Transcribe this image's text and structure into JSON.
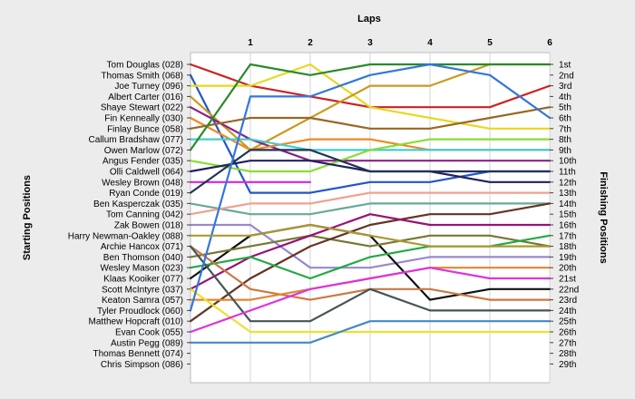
{
  "chart_data": {
    "type": "line",
    "title": "Laps",
    "xlabel": "Laps",
    "ylabel_left": "Starting Positions",
    "ylabel_right": "Finishing Positions",
    "x": [
      0,
      1,
      2,
      3,
      4,
      5,
      6
    ],
    "x_tick_labels": [
      "1",
      "2",
      "3",
      "4",
      "5",
      "6"
    ],
    "ylim": [
      1,
      29
    ],
    "y_inverted": true,
    "grid": true,
    "starting_labels": [
      "Tom Douglas (028)",
      "Thomas Smith (068)",
      "Joe Turney (096)",
      "Albert Carter (016)",
      "Shaye Stewart (022)",
      "Fin Kenneally (030)",
      "Finlay Bunce (058)",
      "Callum Bradshaw (077)",
      "Owen Marlow (072)",
      "Angus Fender (035)",
      "Olli Caldwell (064)",
      "Wesley Brown (048)",
      "Ryan Conde (019)",
      "Ben Kasperczak (035)",
      "Tom Canning (042)",
      "Zak Bowen (018)",
      "Harry Newman-Oakley (088)",
      "Archie Hancox (071)",
      "Ben Thomson (040)",
      "Wesley Mason (023)",
      "Klaas Kooiker (077)",
      "Scott McIntyre (037)",
      "Keaton Samra (057)",
      "Tyler Proudlock (060)",
      "Matthew Hopcraft (010)",
      "Evan Cook (055)",
      "Austin Pegg (089)",
      "Thomas Bennett (074)",
      "Chris Simpson (086)"
    ],
    "finishing_labels": [
      "1st",
      "2nd",
      "3rd",
      "4th",
      "5th",
      "6th",
      "7th",
      "8th",
      "9th",
      "10th",
      "11th",
      "12th",
      "13th",
      "14th",
      "15th",
      "16th",
      "17th",
      "18th",
      "19th",
      "20th",
      "21st",
      "22nd",
      "23rd",
      "24th",
      "25th",
      "26th",
      "27th",
      "28th",
      "29th"
    ],
    "series": [
      {
        "color": "#cc2222",
        "values": [
          1,
          3,
          4,
          5,
          5,
          5,
          3
        ]
      },
      {
        "color": "#2255cc",
        "values": [
          2,
          13,
          13,
          12,
          12,
          11,
          11
        ]
      },
      {
        "color": "#e8d820",
        "values": [
          3,
          3,
          1,
          5,
          6,
          7,
          7
        ]
      },
      {
        "color": "#cc9a22",
        "values": [
          4,
          9,
          6,
          3,
          3,
          1,
          1
        ]
      },
      {
        "color": "#882288",
        "values": [
          5,
          8,
          10,
          10,
          10,
          10,
          10
        ]
      },
      {
        "color": "#ee8822",
        "values": [
          6,
          9,
          8,
          8,
          9,
          9,
          9
        ]
      },
      {
        "color": "#996622",
        "values": [
          7,
          6,
          6,
          7,
          7,
          6,
          5
        ]
      },
      {
        "color": "#44cccc",
        "values": [
          8,
          8,
          9,
          9,
          9,
          9,
          9
        ]
      },
      {
        "color": "#2a8a2a",
        "values": [
          9,
          1,
          2,
          1,
          1,
          1,
          1
        ]
      },
      {
        "color": "#88dd33",
        "values": [
          10,
          11,
          11,
          9,
          8,
          8,
          8
        ]
      },
      {
        "color": "#22225a",
        "values": [
          11,
          10,
          10,
          11,
          11,
          12,
          12
        ]
      },
      {
        "color": "#dd22dd",
        "values": [
          12,
          12,
          12,
          null,
          null,
          null,
          null
        ]
      },
      {
        "color": "#22335a",
        "values": [
          13,
          9,
          9,
          11,
          11,
          11,
          11
        ]
      },
      {
        "color": "#66aa99",
        "values": [
          14,
          15,
          15,
          14,
          14,
          14,
          14
        ]
      },
      {
        "color": "#f0a090",
        "values": [
          15,
          14,
          14,
          13,
          13,
          13,
          13
        ]
      },
      {
        "color": "#9988cc",
        "values": [
          16,
          16,
          20,
          20,
          19,
          19,
          19
        ]
      },
      {
        "color": "#111111",
        "values": [
          21,
          17,
          16,
          17,
          23,
          22,
          22
        ]
      },
      {
        "color": "#777733",
        "values": [
          19,
          18,
          17,
          18,
          17,
          17,
          18
        ]
      },
      {
        "color": "#663322",
        "values": [
          25,
          21,
          18,
          16,
          15,
          15,
          14
        ]
      },
      {
        "color": "#991177",
        "values": [
          22,
          19,
          17,
          15,
          16,
          16,
          16
        ]
      },
      {
        "color": "#22aa44",
        "values": [
          20,
          19,
          21,
          19,
          18,
          18,
          17
        ]
      },
      {
        "color": "#cc7744",
        "values": [
          18,
          22,
          23,
          22,
          22,
          23,
          23
        ]
      },
      {
        "color": "#dd8833",
        "values": [
          23,
          23,
          22,
          21,
          20,
          20,
          20
        ]
      },
      {
        "color": "#f0e030",
        "values": [
          22,
          26,
          26,
          26,
          26,
          26,
          26
        ]
      },
      {
        "color": "#445555",
        "values": [
          18,
          25,
          25,
          22,
          24,
          24,
          24
        ]
      },
      {
        "color": "#dd33dd",
        "values": [
          26,
          24,
          22,
          21,
          20,
          21,
          21
        ]
      },
      {
        "color": "#4488cc",
        "values": [
          27,
          27,
          27,
          25,
          25,
          25,
          25
        ]
      },
      {
        "color": "#3377dd",
        "values": [
          24,
          4,
          4,
          2,
          1,
          2,
          6
        ]
      },
      {
        "color": "#aa9933",
        "values": [
          17,
          17,
          16,
          17,
          18,
          18,
          18
        ]
      }
    ]
  }
}
